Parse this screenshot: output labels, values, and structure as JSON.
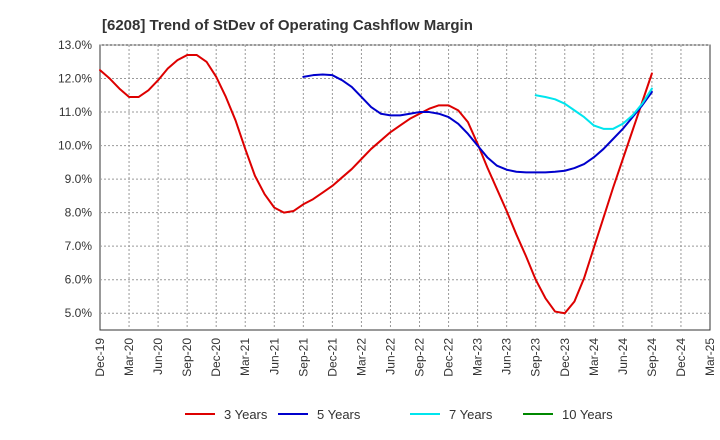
{
  "chart_data": {
    "type": "line",
    "title": "[6208]  Trend of StDev of Operating Cashflow Margin",
    "xlabel": "",
    "ylabel": "",
    "y_unit": "%",
    "ylim": [
      4.5,
      13.0
    ],
    "yticks": [
      "5.0%",
      "6.0%",
      "7.0%",
      "8.0%",
      "9.0%",
      "10.0%",
      "11.0%",
      "12.0%",
      "13.0%"
    ],
    "categories": [
      "Dec-19",
      "Mar-20",
      "Jun-20",
      "Sep-20",
      "Dec-20",
      "Mar-21",
      "Jun-21",
      "Sep-21",
      "Dec-21",
      "Mar-22",
      "Jun-22",
      "Sep-22",
      "Dec-22",
      "Mar-23",
      "Jun-23",
      "Sep-23",
      "Dec-23",
      "Mar-24",
      "Jun-24",
      "Sep-24",
      "Dec-24",
      "Mar-25"
    ],
    "grid": true,
    "legend_position": "bottom",
    "series": [
      {
        "name": "3 Years",
        "color": "#dd0000",
        "points": [
          [
            "Dec-19",
            12.25
          ],
          [
            "Jan-20",
            12.0
          ],
          [
            "Feb-20",
            11.7
          ],
          [
            "Mar-20",
            11.45
          ],
          [
            "Apr-20",
            11.45
          ],
          [
            "May-20",
            11.65
          ],
          [
            "Jun-20",
            11.95
          ],
          [
            "Jul-20",
            12.3
          ],
          [
            "Aug-20",
            12.55
          ],
          [
            "Sep-20",
            12.7
          ],
          [
            "Oct-20",
            12.7
          ],
          [
            "Nov-20",
            12.5
          ],
          [
            "Dec-20",
            12.05
          ],
          [
            "Jan-21",
            11.45
          ],
          [
            "Feb-21",
            10.75
          ],
          [
            "Mar-21",
            9.9
          ],
          [
            "Apr-21",
            9.1
          ],
          [
            "May-21",
            8.55
          ],
          [
            "Jun-21",
            8.15
          ],
          [
            "Jul-21",
            8.0
          ],
          [
            "Aug-21",
            8.05
          ],
          [
            "Sep-21",
            8.25
          ],
          [
            "Oct-21",
            8.4
          ],
          [
            "Nov-21",
            8.6
          ],
          [
            "Dec-21",
            8.8
          ],
          [
            "Jan-22",
            9.05
          ],
          [
            "Feb-22",
            9.3
          ],
          [
            "Mar-22",
            9.6
          ],
          [
            "Apr-22",
            9.9
          ],
          [
            "May-22",
            10.15
          ],
          [
            "Jun-22",
            10.4
          ],
          [
            "Jul-22",
            10.6
          ],
          [
            "Aug-22",
            10.8
          ],
          [
            "Sep-22",
            10.95
          ],
          [
            "Oct-22",
            11.1
          ],
          [
            "Nov-22",
            11.2
          ],
          [
            "Dec-22",
            11.2
          ],
          [
            "Jan-23",
            11.05
          ],
          [
            "Feb-23",
            10.7
          ],
          [
            "Mar-23",
            10.05
          ],
          [
            "Apr-23",
            9.35
          ],
          [
            "May-23",
            8.7
          ],
          [
            "Jun-23",
            8.05
          ],
          [
            "Jul-23",
            7.35
          ],
          [
            "Aug-23",
            6.7
          ],
          [
            "Sep-23",
            6.0
          ],
          [
            "Oct-23",
            5.45
          ],
          [
            "Nov-23",
            5.05
          ],
          [
            "Dec-23",
            5.0
          ],
          [
            "Jan-24",
            5.35
          ],
          [
            "Feb-24",
            6.05
          ],
          [
            "Mar-24",
            6.95
          ],
          [
            "Apr-24",
            7.85
          ],
          [
            "May-24",
            8.75
          ],
          [
            "Jun-24",
            9.6
          ],
          [
            "Jul-24",
            10.45
          ],
          [
            "Aug-24",
            11.3
          ],
          [
            "Sep-24",
            12.15
          ]
        ]
      },
      {
        "name": "5 Years",
        "color": "#0000cc",
        "points": [
          [
            "Sep-21",
            12.05
          ],
          [
            "Oct-21",
            12.1
          ],
          [
            "Nov-21",
            12.12
          ],
          [
            "Dec-21",
            12.1
          ],
          [
            "Jan-22",
            11.95
          ],
          [
            "Feb-22",
            11.75
          ],
          [
            "Mar-22",
            11.45
          ],
          [
            "Apr-22",
            11.15
          ],
          [
            "May-22",
            10.95
          ],
          [
            "Jun-22",
            10.9
          ],
          [
            "Jul-22",
            10.9
          ],
          [
            "Aug-22",
            10.95
          ],
          [
            "Sep-22",
            11.0
          ],
          [
            "Oct-22",
            11.0
          ],
          [
            "Nov-22",
            10.95
          ],
          [
            "Dec-22",
            10.85
          ],
          [
            "Jan-23",
            10.65
          ],
          [
            "Feb-23",
            10.35
          ],
          [
            "Mar-23",
            10.0
          ],
          [
            "Apr-23",
            9.65
          ],
          [
            "May-23",
            9.4
          ],
          [
            "Jun-23",
            9.28
          ],
          [
            "Jul-23",
            9.22
          ],
          [
            "Aug-23",
            9.2
          ],
          [
            "Sep-23",
            9.2
          ],
          [
            "Oct-23",
            9.2
          ],
          [
            "Nov-23",
            9.22
          ],
          [
            "Dec-23",
            9.25
          ],
          [
            "Jan-24",
            9.33
          ],
          [
            "Feb-24",
            9.45
          ],
          [
            "Mar-24",
            9.65
          ],
          [
            "Apr-24",
            9.9
          ],
          [
            "May-24",
            10.2
          ],
          [
            "Jun-24",
            10.5
          ],
          [
            "Jul-24",
            10.85
          ],
          [
            "Aug-24",
            11.2
          ],
          [
            "Sep-24",
            11.6
          ]
        ]
      },
      {
        "name": "7 Years",
        "color": "#00e5ee",
        "points": [
          [
            "Sep-23",
            11.5
          ],
          [
            "Oct-23",
            11.45
          ],
          [
            "Nov-23",
            11.38
          ],
          [
            "Dec-23",
            11.25
          ],
          [
            "Jan-24",
            11.05
          ],
          [
            "Feb-24",
            10.85
          ],
          [
            "Mar-24",
            10.6
          ],
          [
            "Apr-24",
            10.5
          ],
          [
            "May-24",
            10.5
          ],
          [
            "Jun-24",
            10.65
          ],
          [
            "Jul-24",
            10.9
          ],
          [
            "Aug-24",
            11.25
          ],
          [
            "Sep-24",
            11.7
          ]
        ]
      },
      {
        "name": "10 Years",
        "color": "#008800",
        "points": []
      }
    ]
  }
}
